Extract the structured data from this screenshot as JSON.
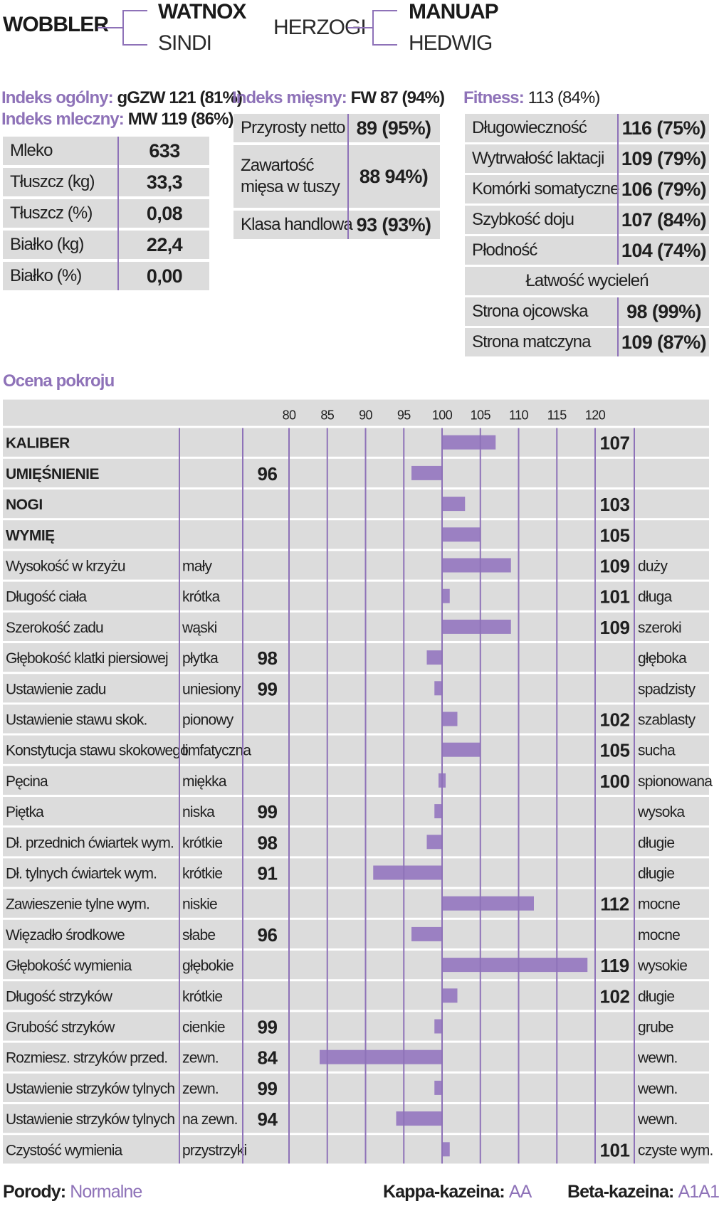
{
  "pedigree": {
    "bull": "WOBBLER",
    "sire": "WATNOX",
    "dam": "SINDI",
    "maternal_grandsire_left": "HERZOGI",
    "maternal_grandsire": "MANUAP",
    "maternal_granddam": "HEDWIG"
  },
  "indexes": {
    "general_label": "Indeks ogólny:",
    "general_value": "gGZW 121 (81%)",
    "milk_label": "Indeks mleczny:",
    "milk_value": "MW 119 (86%)",
    "meat_label": "Indeks mięsny:",
    "meat_value": "FW 87 (94%)",
    "fitness_label": "Fitness:",
    "fitness_value": "113 (84%)"
  },
  "milk_table": [
    {
      "label": "Mleko",
      "value": "633"
    },
    {
      "label": "Tłuszcz (kg)",
      "value": "33,3"
    },
    {
      "label": "Tłuszcz (%)",
      "value": "0,08"
    },
    {
      "label": "Białko (kg)",
      "value": "22,4"
    },
    {
      "label": "Białko (%)",
      "value": "0,00"
    }
  ],
  "meat_table": [
    {
      "label": "Przyrosty netto",
      "value": "89 (95%)"
    },
    {
      "label": "Zawartość",
      "label2": "mięsa w tuszy",
      "value": "88 94%)"
    },
    {
      "label": "Klasa handlowa",
      "value": "93 (93%)"
    }
  ],
  "fitness_table": [
    {
      "label": "Długowieczność",
      "value": "116 (75%)"
    },
    {
      "label": "Wytrwałość laktacji",
      "value": "109 (79%)"
    },
    {
      "label": "Komórki somatyczne",
      "value": "106 (79%)"
    },
    {
      "label": "Szybkość doju",
      "value": "107 (84%)"
    },
    {
      "label": "Płodność",
      "value": "104 (74%)"
    }
  ],
  "calving": {
    "title": "Łatwość wycieleń",
    "rows": [
      {
        "label": "Strona ojcowska",
        "value": "98 (99%)"
      },
      {
        "label": "Strona matczyna",
        "value": "109 (87%)"
      }
    ]
  },
  "chart_title": "Ocena pokroju",
  "colors": {
    "accent": "#8e72b8",
    "row_bg": "#dcdcdc",
    "bar": "#9b80c2"
  },
  "chart_data": {
    "type": "bar",
    "orientation": "horizontal",
    "baseline": 100,
    "xlim": [
      80,
      120
    ],
    "x_ticks": [
      80,
      85,
      90,
      95,
      100,
      105,
      110,
      115,
      120
    ],
    "traits": [
      {
        "name": "KALIBER",
        "bold": true,
        "low": "",
        "high": "",
        "value": 107
      },
      {
        "name": "UMIĘŚNIENIE",
        "bold": true,
        "low": "",
        "high": "",
        "value": 96
      },
      {
        "name": "NOGI",
        "bold": true,
        "low": "",
        "high": "",
        "value": 103
      },
      {
        "name": "WYMIĘ",
        "bold": true,
        "low": "",
        "high": "",
        "value": 105
      },
      {
        "name": "Wysokość w krzyżu",
        "low": "mały",
        "high": "duży",
        "value": 109
      },
      {
        "name": "Długość ciała",
        "low": "krótka",
        "high": "długa",
        "value": 101
      },
      {
        "name": "Szerokość zadu",
        "low": "wąski",
        "high": "szeroki",
        "value": 109
      },
      {
        "name": "Głębokość klatki piersiowej",
        "low": "płytka",
        "high": "głęboka",
        "value": 98
      },
      {
        "name": "Ustawienie zadu",
        "low": "uniesiony",
        "high": "spadzisty",
        "value": 99
      },
      {
        "name": "Ustawienie stawu skok.",
        "low": "pionowy",
        "high": "szablasty",
        "value": 102
      },
      {
        "name": "Konstytucja stawu skokowego",
        "low": "limfatyczna",
        "high": "sucha",
        "value": 105
      },
      {
        "name": "Pęcina",
        "low": "miękka",
        "high": "spionowana",
        "value": 100
      },
      {
        "name": "Piętka",
        "low": "niska",
        "high": "wysoka",
        "value": 99
      },
      {
        "name": "Dł. przednich ćwiartek wym.",
        "low": "krótkie",
        "high": "długie",
        "value": 98
      },
      {
        "name": "Dł. tylnych ćwiartek wym.",
        "low": "krótkie",
        "high": "długie",
        "value": 91
      },
      {
        "name": "Zawieszenie tylne wym.",
        "low": "niskie",
        "high": "mocne",
        "value": 112
      },
      {
        "name": "Więzadło środkowe",
        "low": "słabe",
        "high": "mocne",
        "value": 96
      },
      {
        "name": "Głębokość wymienia",
        "low": "głębokie",
        "high": "wysokie",
        "value": 119
      },
      {
        "name": "Długość strzyków",
        "low": "krótkie",
        "high": "długie",
        "value": 102
      },
      {
        "name": "Grubość strzyków",
        "low": "cienkie",
        "high": "grube",
        "value": 99
      },
      {
        "name": "Rozmiesz. strzyków przed.",
        "low": "zewn.",
        "high": "wewn.",
        "value": 84
      },
      {
        "name": "Ustawienie strzyków tylnych",
        "low": "zewn.",
        "high": "wewn.",
        "value": 99
      },
      {
        "name": "Ustawienie strzyków tylnych",
        "low": "na zewn.",
        "high": "wewn.",
        "value": 94
      },
      {
        "name": "Czystość wymienia",
        "low": "przystrzyki",
        "high": "czyste wym.",
        "value": 101
      }
    ]
  },
  "footer": {
    "porody_label": "Porody:",
    "porody_value": "Normalne",
    "kappa_label": "Kappa-kazeina:",
    "kappa_value": "AA",
    "beta_label": "Beta-kazeina:",
    "beta_value": "A1A1"
  }
}
